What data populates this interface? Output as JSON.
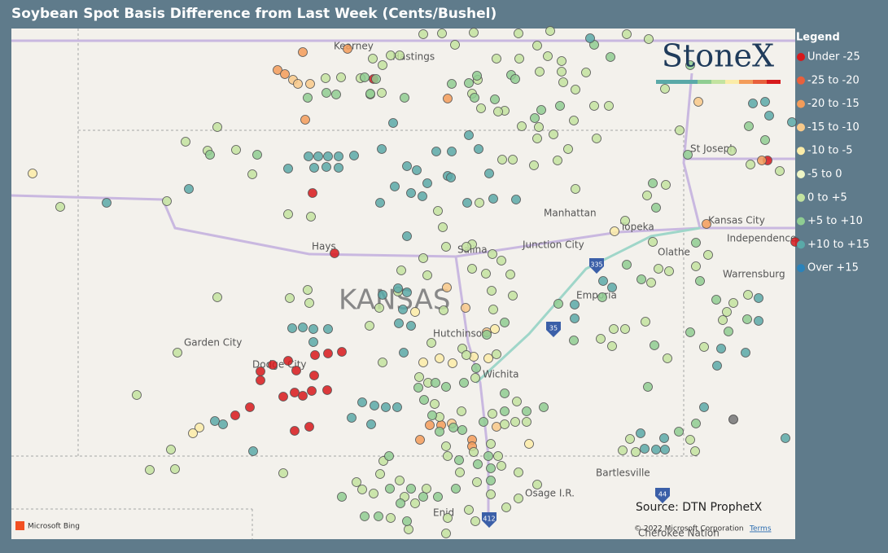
{
  "header": {
    "title": "Soybean Spot Basis Difference from Last Week (Cents/Bushel)"
  },
  "legend": {
    "title": "Legend",
    "items": [
      {
        "label": "Under -25",
        "color": "#d7191c"
      },
      {
        "label": "-25 to -20",
        "color": "#e8603c"
      },
      {
        "label": "-20 to -15",
        "color": "#f39c5a"
      },
      {
        "label": "-15 to -10",
        "color": "#f8c98a"
      },
      {
        "label": "-10 to -5",
        "color": "#fbeca8"
      },
      {
        "label": "-5 to 0",
        "color": "#eef5c6"
      },
      {
        "label": "0 to +5",
        "color": "#c3e3a0"
      },
      {
        "label": "+5 to +10",
        "color": "#8fcd92"
      },
      {
        "label": "+10 to +15",
        "color": "#5aa9a8"
      },
      {
        "label": "Over +15",
        "color": "#2b83ba"
      }
    ]
  },
  "map": {
    "state": "KANSAS",
    "places": [
      "Kearney",
      "Hastings",
      "St Joseph",
      "Manhattan",
      "Topeka",
      "Kansas City",
      "Independence",
      "Hays",
      "Salina",
      "Junction City",
      "Olathe",
      "Warrensburg",
      "Emporia",
      "Garden City",
      "Dodge City",
      "Hutchinson",
      "Wichita",
      "Bartlesville",
      "Osage I.R.",
      "Enid",
      "Cherokee Nation"
    ],
    "shields": [
      "335",
      "35",
      "44",
      "412"
    ],
    "logo": "StoneX",
    "source": "Source: DTN ProphetX",
    "provider": "Microsoft Bing",
    "copyright": "© 2022 Microsoft Corporation",
    "terms": "Terms"
  }
}
